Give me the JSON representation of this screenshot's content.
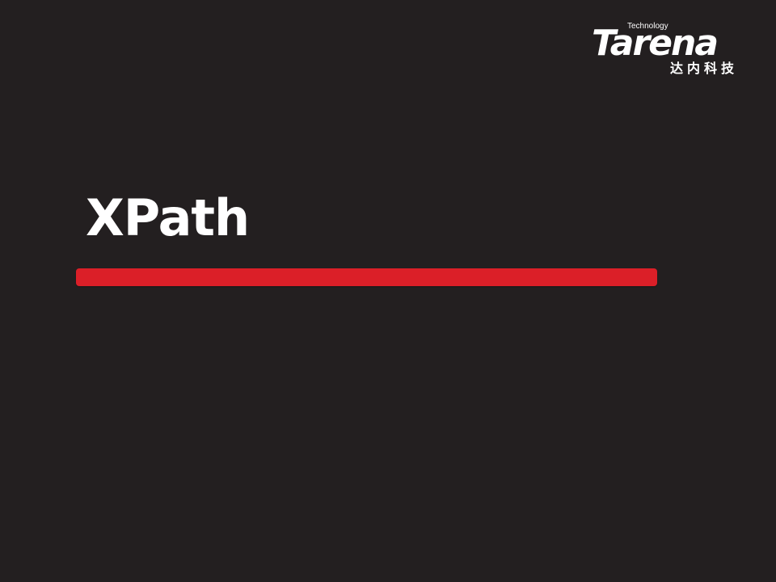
{
  "logo": {
    "tagline": "Technology",
    "wordmark": "Tarena",
    "chinese_name": "达内科技"
  },
  "slide": {
    "title": "XPath"
  },
  "colors": {
    "background": "#231f20",
    "accent_bar": "#db1f28",
    "text": "#ffffff"
  }
}
